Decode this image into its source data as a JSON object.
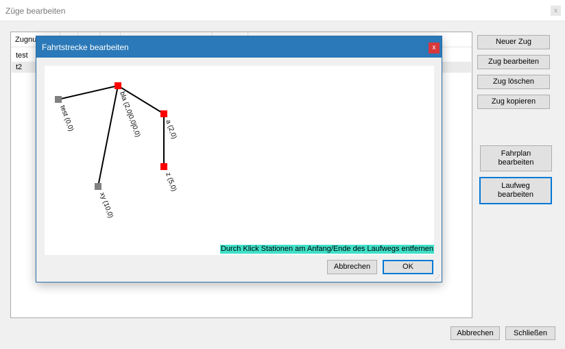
{
  "window": {
    "title": "Züge bearbeiten",
    "close_glyph": "x"
  },
  "list": {
    "header_first": "Zugnummer",
    "rows": [
      "test",
      "t2"
    ]
  },
  "side_buttons": {
    "new": "Neuer Zug",
    "edit": "Zug bearbeiten",
    "delete": "Zug löschen",
    "copy": "Zug kopieren",
    "timetable": [
      "Fahrplan",
      "bearbeiten"
    ],
    "route": [
      "Laufweg",
      "bearbeiten"
    ]
  },
  "footer": {
    "cancel": "Abbrechen",
    "close": "Schließen"
  },
  "dialog": {
    "title": "Fahrtstrecke bearbeiten",
    "close_glyph": "x",
    "hint": "Durch Klick Stationen am Anfang/Ende des Laufwegs entfernen",
    "cancel": "Abbrechen",
    "ok": "OK",
    "stations": [
      {
        "label": "test (0,0)",
        "state": "inactive"
      },
      {
        "label": "bla (2,0|0,0|0,0)",
        "state": "active"
      },
      {
        "label": "a (2,0)",
        "state": "active"
      },
      {
        "label": "z (5,0)",
        "state": "active"
      },
      {
        "label": "xy (10,0)",
        "state": "inactive"
      }
    ],
    "colors": {
      "active": "#ff0000",
      "inactive": "#808080"
    }
  }
}
